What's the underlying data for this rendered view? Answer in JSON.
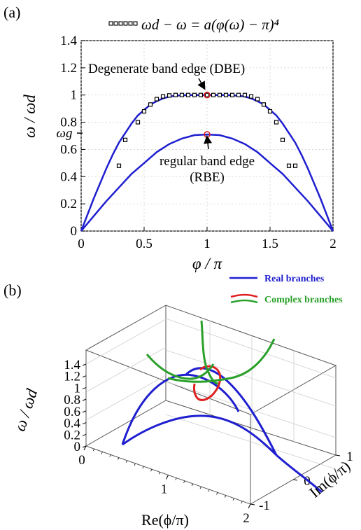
{
  "panel_a_label": "(a)",
  "panel_b_label": "(b)",
  "chart_data": [
    {
      "type": "line",
      "legend": "ωd − ω = a(φ(ω) − π)⁴",
      "xlabel": "φ / π",
      "ylabel": "ω / ωd",
      "xlim": [
        0,
        2
      ],
      "ylim": [
        0,
        1.4
      ],
      "xticks": [
        "0",
        "0.5",
        "1",
        "1.5",
        "2"
      ],
      "yticks": [
        "0",
        "0.2",
        "0.4",
        "0.6",
        "0.8",
        "1",
        "1.2",
        "1.4"
      ],
      "extra_ytick_label": "ωg",
      "extra_ytick_value": 0.72,
      "series": [
        {
          "color": "#1f1fd0",
          "x": [
            0,
            0.05,
            0.1,
            0.15,
            0.2,
            0.25,
            0.3,
            0.35,
            0.4,
            0.45,
            0.5,
            0.55,
            0.6,
            0.65,
            0.7,
            0.75,
            0.8,
            0.85,
            0.9,
            0.95,
            1,
            1.05,
            1.1,
            1.15,
            1.2,
            1.25,
            1.3,
            1.35,
            1.4,
            1.45,
            1.5,
            1.55,
            1.6,
            1.65,
            1.7,
            1.75,
            1.8,
            1.85,
            1.9,
            1.95,
            2
          ],
          "y": [
            0,
            0.12,
            0.24,
            0.35,
            0.46,
            0.56,
            0.65,
            0.72,
            0.79,
            0.85,
            0.89,
            0.93,
            0.955,
            0.975,
            0.988,
            0.995,
            0.998,
            1,
            1,
            1,
            1,
            1,
            1,
            1,
            0.998,
            0.995,
            0.988,
            0.975,
            0.955,
            0.93,
            0.89,
            0.85,
            0.79,
            0.72,
            0.65,
            0.56,
            0.46,
            0.35,
            0.24,
            0.12,
            0
          ]
        },
        {
          "color": "#1f1fd0",
          "x": [
            0,
            0.1,
            0.2,
            0.3,
            0.4,
            0.5,
            0.6,
            0.7,
            0.8,
            0.9,
            1,
            1.1,
            1.2,
            1.3,
            1.4,
            1.5,
            1.6,
            1.7,
            1.8,
            1.9,
            2
          ],
          "y": [
            0,
            0.11,
            0.22,
            0.32,
            0.42,
            0.5,
            0.58,
            0.64,
            0.68,
            0.705,
            0.71,
            0.705,
            0.68,
            0.64,
            0.58,
            0.5,
            0.42,
            0.32,
            0.22,
            0.11,
            0
          ]
        }
      ],
      "markers": {
        "x": [
          0.3,
          0.35,
          0.45,
          0.5,
          0.55,
          0.6,
          0.65,
          0.7,
          0.75,
          0.8,
          0.85,
          0.9,
          0.95,
          1,
          1.05,
          1.1,
          1.15,
          1.2,
          1.25,
          1.3,
          1.35,
          1.4,
          1.45,
          1.5,
          1.55,
          1.6,
          1.65,
          1.7
        ],
        "y": [
          0.48,
          0.67,
          0.8,
          0.88,
          0.93,
          0.97,
          0.99,
          0.997,
          1,
          1,
          1,
          1,
          1,
          1,
          1,
          1,
          1,
          1,
          1,
          1,
          0.99,
          0.97,
          0.93,
          0.88,
          0.8,
          0.67,
          0.48,
          0.48
        ]
      },
      "points": [
        {
          "x": 1,
          "y": 1,
          "color": "#e02020"
        },
        {
          "x": 1,
          "y": 0.71,
          "color": "#e02020"
        }
      ],
      "annotations": [
        {
          "text": "Degenerate band edge (DBE)"
        },
        {
          "text": "regular band edge"
        },
        {
          "text": "(RBE)"
        }
      ]
    },
    {
      "type": "line",
      "legend": [
        {
          "name": "Real branches",
          "color": "#1f1fd0"
        },
        {
          "name": "Complex branches",
          "color": "#2aa02a"
        }
      ],
      "ylabel": "ω / ωd",
      "xlabel": "Re(ϕ/π)",
      "zlabel": "Im(ϕ/π)",
      "yticks": [
        "0",
        "0.2",
        "0.4",
        "0.6",
        "0.8",
        "1",
        "1.2",
        "1.4"
      ],
      "xticks": [
        "0",
        "1",
        "2"
      ],
      "zticks": [
        "-1",
        "0",
        "1"
      ]
    }
  ]
}
